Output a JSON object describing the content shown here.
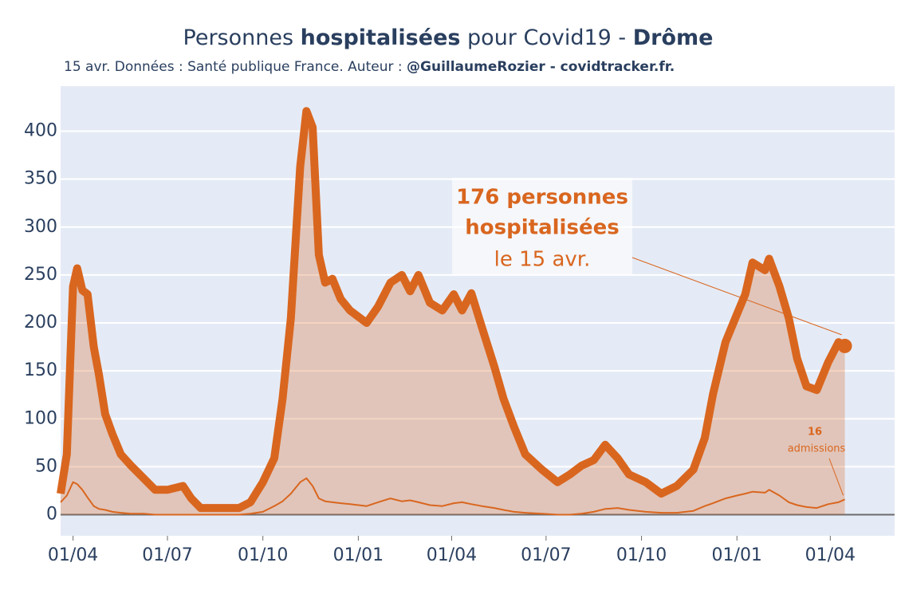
{
  "chart_data": {
    "type": "line",
    "title_parts": [
      "Personnes ",
      "hospitalisées",
      " pour Covid19 - ",
      "Drôme"
    ],
    "subtitle_parts": [
      "15 avr. Données : Santé publique France. Auteur : ",
      "@GuillaumeRozier - covidtracker.fr."
    ],
    "annotation": [
      "176 personnes",
      "hospitalisées",
      "le 15 avr."
    ],
    "annotation_admissions": [
      "16",
      "admissions"
    ],
    "x": [
      -12,
      -6,
      0,
      4,
      9,
      14,
      20,
      25,
      31,
      38,
      46,
      56,
      68,
      79,
      91,
      106,
      114,
      123,
      144,
      160,
      171,
      183,
      194,
      202,
      210,
      219,
      225,
      231,
      237,
      243,
      250,
      258,
      267,
      283,
      294,
      306,
      317,
      325,
      333,
      344,
      356,
      367,
      375,
      384,
      394,
      406,
      415,
      425,
      436,
      452,
      467,
      479,
      490,
      502,
      513,
      525,
      536,
      552,
      567,
      582,
      598,
      609,
      617,
      629,
      640,
      648,
      655,
      667,
      671,
      681,
      690,
      698,
      707,
      717,
      728,
      738,
      744
    ],
    "series": [
      {
        "name": "hospitalisées",
        "color": "#d9661f",
        "fill": true,
        "values": [
          22,
          63,
          238,
          257,
          234,
          230,
          175,
          146,
          105,
          84,
          63,
          51,
          38,
          26,
          26,
          30,
          17,
          7,
          7,
          7,
          13,
          34,
          59,
          121,
          205,
          363,
          421,
          404,
          271,
          242,
          246,
          225,
          213,
          200,
          217,
          242,
          250,
          233,
          250,
          221,
          213,
          230,
          213,
          231,
          196,
          155,
          121,
          92,
          63,
          47,
          34,
          42,
          51,
          57,
          73,
          59,
          42,
          34,
          22,
          30,
          47,
          80,
          126,
          180,
          209,
          230,
          263,
          255,
          267,
          238,
          205,
          163,
          134,
          130,
          159,
          180,
          176
        ]
      },
      {
        "name": "admissions",
        "color": "#d9661f",
        "fill": false,
        "values": [
          13,
          20,
          34,
          32,
          26,
          18,
          9,
          6,
          5,
          3,
          2,
          1,
          1,
          0,
          0,
          0,
          0,
          0,
          0,
          0,
          1,
          3,
          9,
          14,
          22,
          34,
          38,
          30,
          17,
          14,
          13,
          12,
          11,
          9,
          13,
          17,
          14,
          15,
          13,
          10,
          9,
          12,
          13,
          11,
          9,
          7,
          5,
          3,
          2,
          1,
          0,
          0,
          1,
          3,
          6,
          7,
          5,
          3,
          2,
          2,
          4,
          9,
          12,
          17,
          20,
          22,
          24,
          23,
          26,
          20,
          13,
          10,
          8,
          7,
          11,
          13,
          16
        ]
      }
    ],
    "xlim": [
      -12,
      792
    ],
    "xticks": [
      {
        "value": 0,
        "label": "01/04"
      },
      {
        "value": 91,
        "label": "01/07"
      },
      {
        "value": 183,
        "label": "01/10"
      },
      {
        "value": 275,
        "label": "01/01"
      },
      {
        "value": 365,
        "label": "01/04"
      },
      {
        "value": 456,
        "label": "01/07"
      },
      {
        "value": 548,
        "label": "01/10"
      },
      {
        "value": 640,
        "label": "01/01"
      },
      {
        "value": 730,
        "label": "01/04"
      }
    ],
    "ylim": [
      -22,
      447
    ],
    "yticks": [
      0,
      50,
      100,
      150,
      200,
      250,
      300,
      350,
      400
    ],
    "grid": true
  }
}
